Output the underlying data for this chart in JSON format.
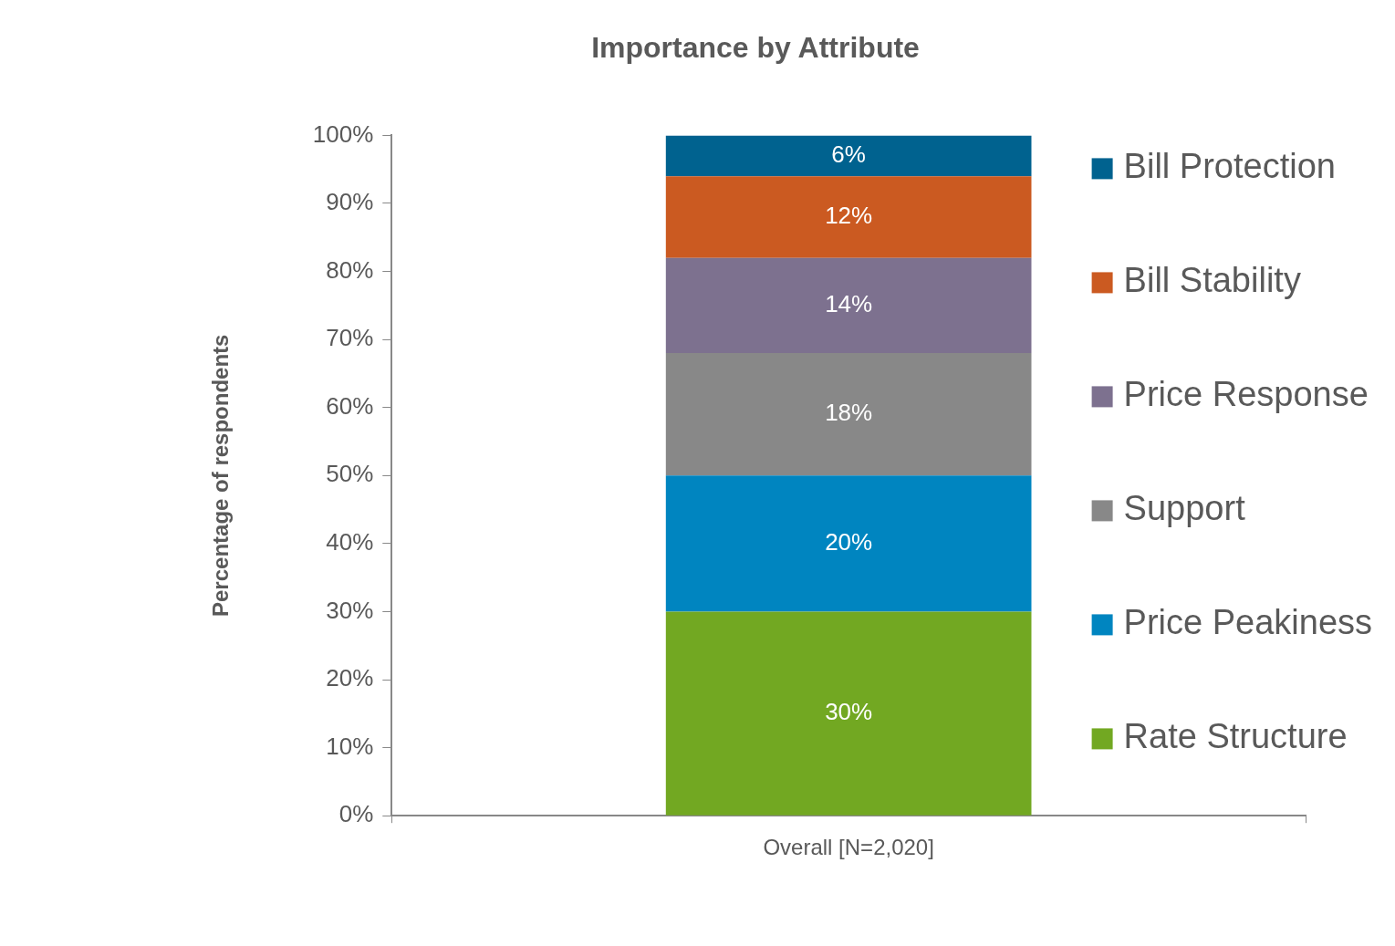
{
  "chart_data": {
    "type": "bar",
    "title": "Importance by Attribute",
    "ylabel": "Percentage of respondents",
    "categories": [
      "Overall [N=2,020]"
    ],
    "stacked": true,
    "legend": "right",
    "grid": false,
    "ylim": [
      0,
      100
    ],
    "yticks": [
      {
        "value": 0,
        "label": "0%"
      },
      {
        "value": 10,
        "label": "10%"
      },
      {
        "value": 20,
        "label": "20%"
      },
      {
        "value": 30,
        "label": "30%"
      },
      {
        "value": 40,
        "label": "40%"
      },
      {
        "value": 50,
        "label": "50%"
      },
      {
        "value": 60,
        "label": "60%"
      },
      {
        "value": 70,
        "label": "70%"
      },
      {
        "value": 80,
        "label": "80%"
      },
      {
        "value": 90,
        "label": "90%"
      },
      {
        "value": 100,
        "label": "100%"
      }
    ],
    "series": [
      {
        "name": "Rate Structure",
        "color": "#72a822",
        "values": [
          30
        ],
        "value_labels": [
          "30%"
        ]
      },
      {
        "name": "Price Peakiness",
        "color": "#0085c0",
        "values": [
          20
        ],
        "value_labels": [
          "20%"
        ]
      },
      {
        "name": "Support",
        "color": "#888888",
        "values": [
          18
        ],
        "value_labels": [
          "18%"
        ]
      },
      {
        "name": "Price Response",
        "color": "#7d718f",
        "values": [
          14
        ],
        "value_labels": [
          "14%"
        ]
      },
      {
        "name": "Bill Stability",
        "color": "#cb5a21",
        "values": [
          12
        ],
        "value_labels": [
          "12%"
        ]
      },
      {
        "name": "Bill Protection",
        "color": "#00628f",
        "values": [
          6
        ],
        "value_labels": [
          "6%"
        ]
      }
    ]
  }
}
